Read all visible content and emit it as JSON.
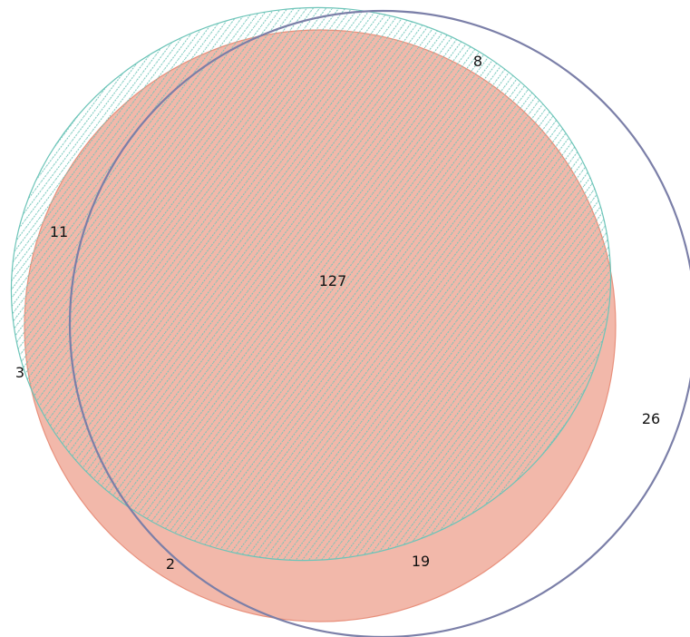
{
  "diagram": {
    "type": "venn",
    "set_count": 3,
    "sets": [
      {
        "key": "A",
        "style": "solid-fill",
        "fill": "#f2b8aa",
        "stroke": "#e8907c"
      },
      {
        "key": "B",
        "style": "hatched",
        "stroke": "#6cc4b8",
        "hatch": "#6cc4b8"
      },
      {
        "key": "C",
        "style": "outline",
        "stroke": "#7b7fa8"
      }
    ],
    "regions": [
      {
        "sets": [
          "A",
          "B",
          "C"
        ],
        "value": "127"
      },
      {
        "sets": [
          "C"
        ],
        "value": "26"
      },
      {
        "sets": [
          "A",
          "C"
        ],
        "value": "19"
      },
      {
        "sets": [
          "A",
          "B"
        ],
        "value": "11"
      },
      {
        "sets": [
          "B",
          "C"
        ],
        "value": "8"
      },
      {
        "sets": [
          "B"
        ],
        "value": "3"
      },
      {
        "sets": [
          "A"
        ],
        "value": "2"
      }
    ]
  }
}
